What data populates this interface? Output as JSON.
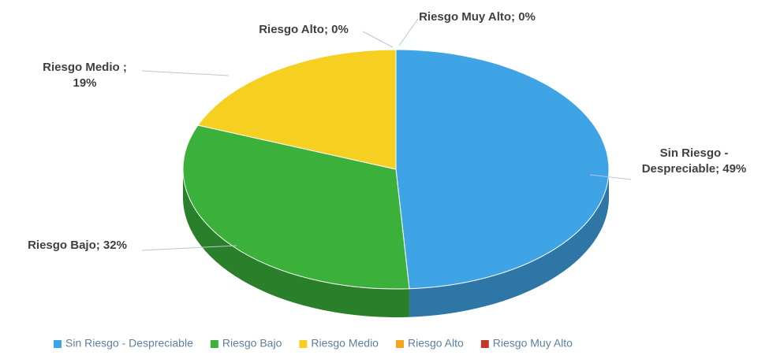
{
  "chart_data": {
    "type": "pie",
    "categories": [
      "Sin Riesgo - Despreciable",
      "Riesgo Bajo",
      "Riesgo Medio",
      "Riesgo Alto",
      "Riesgo Muy Alto"
    ],
    "values": [
      49,
      32,
      19,
      0,
      0
    ],
    "value_labels": [
      "Sin Riesgo - Despreciable; 49%",
      "Riesgo Bajo; 32%",
      "Riesgo Medio ; 19%",
      "Riesgo Alto; 0%",
      "Riesgo Muy Alto; 0%"
    ],
    "colors": [
      "#3ea4e6",
      "#3bb13b",
      "#f5d020",
      "#f2a51e",
      "#c0392b"
    ],
    "legend": "bottom"
  }
}
